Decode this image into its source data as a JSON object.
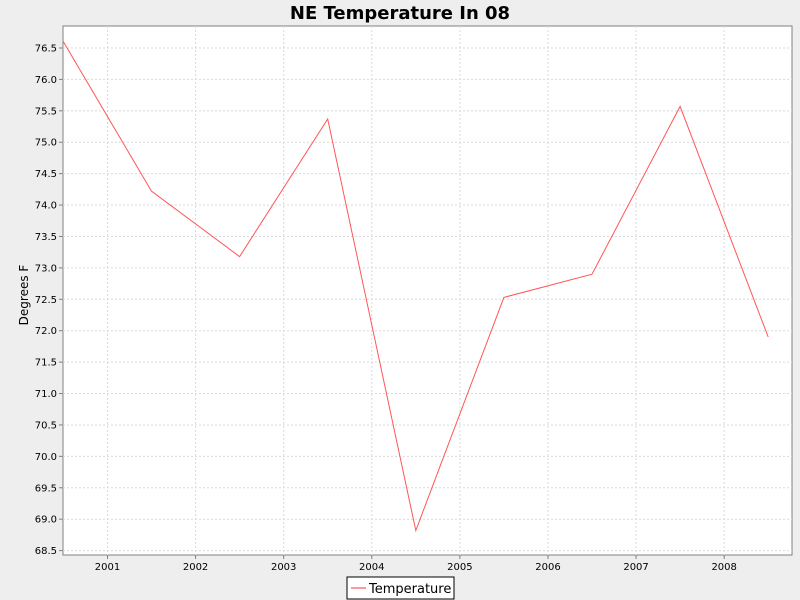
{
  "chart_data": {
    "type": "line",
    "title": "NE Temperature In 08",
    "xlabel": "",
    "ylabel": "Degrees F",
    "x_ticks": [
      "2001",
      "2002",
      "2003",
      "2004",
      "2005",
      "2006",
      "2007",
      "2008"
    ],
    "y_ticks": [
      "68.5",
      "69.0",
      "69.5",
      "70.0",
      "70.5",
      "71.0",
      "71.5",
      "72.0",
      "72.5",
      "73.0",
      "73.5",
      "74.0",
      "74.5",
      "75.0",
      "75.5",
      "76.0",
      "76.5"
    ],
    "ylim": [
      68.43,
      76.85
    ],
    "grid": true,
    "legend": "bottom-center",
    "series": [
      {
        "name": "Temperature",
        "color": "#ff5555",
        "x": [
          "2000-07",
          "2001-07",
          "2002-07",
          "2003-07",
          "2004-07",
          "2005-07",
          "2006-07",
          "2007-07",
          "2008-07"
        ],
        "values": [
          76.6,
          74.22,
          73.18,
          75.37,
          68.82,
          72.53,
          72.9,
          75.57,
          71.9
        ]
      }
    ]
  }
}
